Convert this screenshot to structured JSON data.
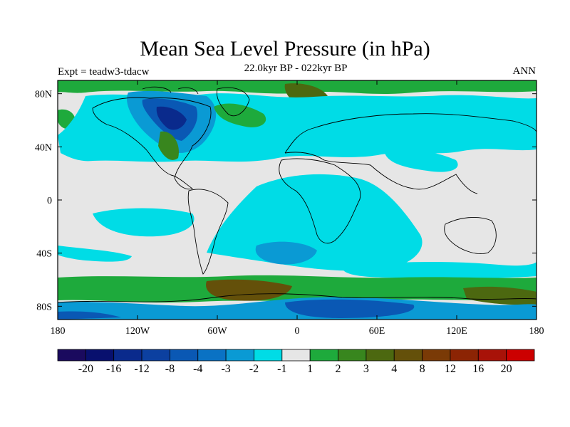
{
  "title": "Mean Sea Level Pressure (in hPa)",
  "subtitle": "22.0kyr BP - 022kyr BP",
  "left_label": "Expt = teadw3-tdacw",
  "right_label": "ANN",
  "lat_ticks": [
    "80N",
    "40N",
    "0",
    "40S",
    "80S"
  ],
  "lon_ticks": [
    "180",
    "120W",
    "60W",
    "0",
    "60E",
    "120E",
    "180"
  ],
  "colorbar": {
    "colors": [
      "#1a0a5e",
      "#08106e",
      "#0a2a8c",
      "#0c40a0",
      "#0a58b4",
      "#0a72c4",
      "#0a9ad4",
      "#00dce6",
      "#e6e6e6",
      "#1eaa3c",
      "#38861e",
      "#4c6810",
      "#64500a",
      "#7a3a06",
      "#8c2404",
      "#a81208",
      "#cc0000"
    ],
    "labels": [
      "-20",
      "-16",
      "-12",
      "-8",
      "-4",
      "-3",
      "-2",
      "-1",
      "1",
      "2",
      "3",
      "4",
      "8",
      "12",
      "16",
      "20"
    ]
  }
}
